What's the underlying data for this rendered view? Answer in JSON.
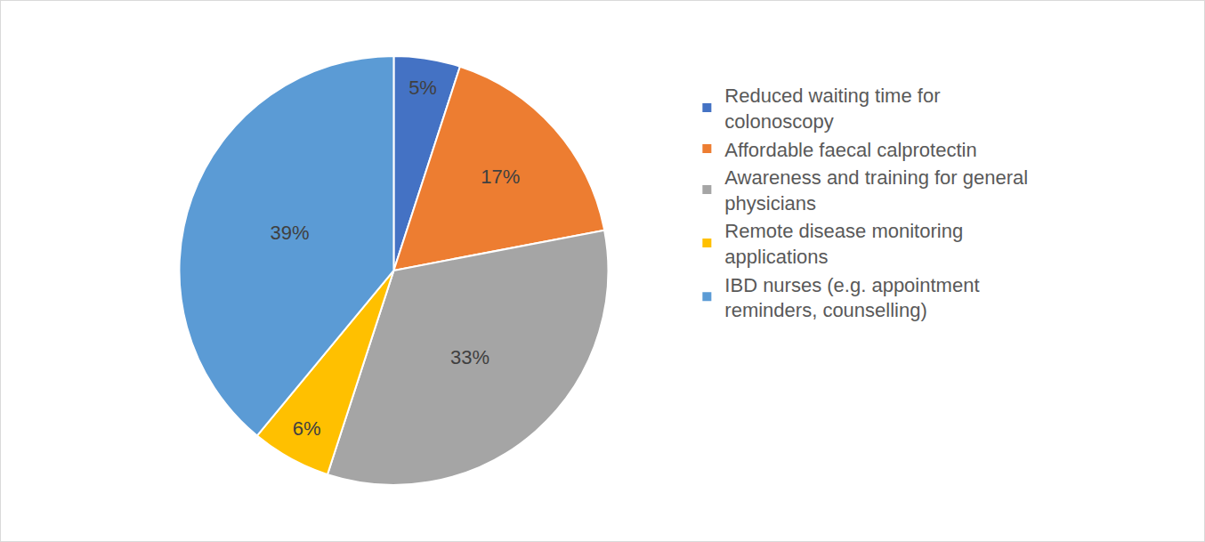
{
  "chart_data": {
    "type": "pie",
    "categories": [
      "Reduced waiting time for colonoscopy",
      "Affordable faecal calprotectin",
      "Awareness and training for general physicians",
      "Remote disease monitoring applications",
      "IBD nurses (e.g. appointment reminders, counselling)"
    ],
    "values": [
      5,
      17,
      33,
      6,
      39
    ],
    "value_labels": [
      "5%",
      "17%",
      "33%",
      "6%",
      "39%"
    ],
    "colors": [
      "#4472c4",
      "#ed7d31",
      "#a5a5a5",
      "#ffc000",
      "#5b9bd5"
    ],
    "data_labels": true,
    "legend": "right"
  }
}
